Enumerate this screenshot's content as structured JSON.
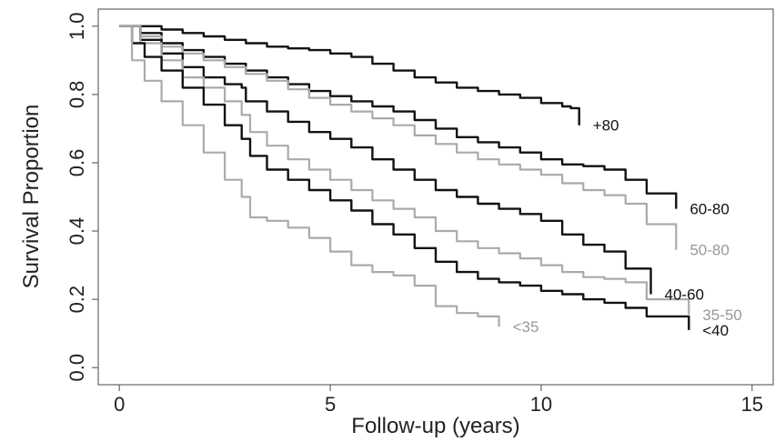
{
  "chart_data": {
    "type": "line",
    "title": "",
    "xlabel": "Follow-up (years)",
    "ylabel": "Survival Proportion",
    "xlim": [
      -0.5,
      15.5
    ],
    "ylim": [
      -0.05,
      1.05
    ],
    "xticks": [
      0,
      5,
      10,
      15
    ],
    "yticks": [
      0.0,
      0.2,
      0.4,
      0.6,
      0.8,
      1.0
    ],
    "xtick_labels": [
      "0",
      "5",
      "10",
      "15"
    ],
    "ytick_labels": [
      "0.0",
      "0.2",
      "0.4",
      "0.6",
      "0.8",
      "1.0"
    ],
    "grid": false,
    "series": [
      {
        "name": "+80",
        "color": "#111111",
        "x": [
          0,
          0.5,
          1,
          1.5,
          2,
          2.5,
          3,
          3.5,
          4,
          4.5,
          5,
          5.5,
          6,
          6.5,
          7,
          7.5,
          8,
          8.5,
          9,
          9.5,
          10,
          10.5,
          10.7,
          10.9
        ],
        "y": [
          1.0,
          1.0,
          0.99,
          0.98,
          0.97,
          0.96,
          0.95,
          0.94,
          0.935,
          0.93,
          0.92,
          0.91,
          0.89,
          0.87,
          0.85,
          0.835,
          0.82,
          0.81,
          0.8,
          0.79,
          0.775,
          0.765,
          0.76,
          0.71
        ]
      },
      {
        "name": "60-80",
        "color": "#111111",
        "x": [
          0,
          0.5,
          1,
          1.5,
          2,
          2.5,
          3,
          3.5,
          4,
          4.5,
          5,
          5.5,
          6,
          6.5,
          7,
          7.5,
          8,
          8.5,
          9,
          9.5,
          10,
          10.5,
          11,
          11.5,
          12,
          12.5,
          13.2
        ],
        "y": [
          1.0,
          0.98,
          0.95,
          0.93,
          0.91,
          0.89,
          0.87,
          0.85,
          0.83,
          0.81,
          0.795,
          0.78,
          0.765,
          0.75,
          0.725,
          0.7,
          0.675,
          0.66,
          0.645,
          0.63,
          0.61,
          0.595,
          0.59,
          0.58,
          0.55,
          0.51,
          0.465
        ]
      },
      {
        "name": "50-80",
        "color": "#aaaaaa",
        "x": [
          0,
          0.5,
          1,
          1.5,
          2,
          2.5,
          3,
          3.5,
          4,
          4.5,
          5,
          5.5,
          6,
          6.5,
          7,
          7.5,
          8,
          8.5,
          9,
          9.5,
          10,
          10.5,
          11,
          11.5,
          12,
          12.5,
          13.2
        ],
        "y": [
          1.0,
          0.97,
          0.94,
          0.92,
          0.9,
          0.88,
          0.86,
          0.84,
          0.815,
          0.79,
          0.77,
          0.75,
          0.73,
          0.71,
          0.68,
          0.655,
          0.63,
          0.61,
          0.595,
          0.58,
          0.565,
          0.54,
          0.52,
          0.505,
          0.48,
          0.42,
          0.345
        ]
      },
      {
        "name": "40-60",
        "color": "#111111",
        "x": [
          0,
          0.5,
          1,
          1.5,
          2,
          2.5,
          2.9,
          3,
          3.5,
          4,
          4.5,
          5,
          5.5,
          6,
          6.5,
          7,
          7.5,
          8,
          8.5,
          9,
          9.5,
          10,
          10.5,
          11,
          11.5,
          12,
          12.6
        ],
        "y": [
          1.0,
          0.96,
          0.92,
          0.88,
          0.85,
          0.83,
          0.82,
          0.78,
          0.75,
          0.72,
          0.69,
          0.67,
          0.645,
          0.61,
          0.58,
          0.55,
          0.52,
          0.5,
          0.48,
          0.465,
          0.45,
          0.43,
          0.39,
          0.36,
          0.34,
          0.29,
          0.215
        ]
      },
      {
        "name": "35-50",
        "color": "#aaaaaa",
        "x": [
          0,
          0.5,
          1,
          1.5,
          2,
          2.5,
          2.9,
          3.1,
          3.5,
          4,
          4.5,
          5,
          5.5,
          6,
          6.5,
          7,
          7.5,
          8,
          8.5,
          9,
          9.5,
          10,
          10.5,
          11,
          11.5,
          12,
          12.5,
          13.5
        ],
        "y": [
          1.0,
          0.95,
          0.9,
          0.85,
          0.82,
          0.78,
          0.74,
          0.69,
          0.65,
          0.61,
          0.58,
          0.55,
          0.52,
          0.49,
          0.465,
          0.44,
          0.4,
          0.37,
          0.35,
          0.335,
          0.32,
          0.3,
          0.28,
          0.265,
          0.26,
          0.25,
          0.2,
          0.155
        ]
      },
      {
        "name": "<40",
        "color": "#111111",
        "x": [
          0,
          0.3,
          0.6,
          1,
          1.5,
          2,
          2.5,
          2.9,
          3.1,
          3.5,
          4,
          4.5,
          5,
          5.5,
          6,
          6.5,
          7,
          7.5,
          8,
          8.5,
          9,
          9.5,
          10,
          10.5,
          11,
          11.5,
          12,
          12.5,
          13.5
        ],
        "y": [
          1.0,
          0.95,
          0.91,
          0.87,
          0.82,
          0.77,
          0.71,
          0.67,
          0.62,
          0.58,
          0.55,
          0.52,
          0.49,
          0.46,
          0.42,
          0.39,
          0.35,
          0.31,
          0.28,
          0.26,
          0.25,
          0.24,
          0.225,
          0.215,
          0.2,
          0.19,
          0.175,
          0.15,
          0.11
        ]
      },
      {
        "name": "<35",
        "color": "#aaaaaa",
        "x": [
          0,
          0.3,
          0.6,
          1,
          1.5,
          2,
          2.5,
          2.9,
          3.1,
          3.5,
          4,
          4.5,
          5,
          5.5,
          6,
          6.5,
          7,
          7.5,
          8,
          8.5,
          9
        ],
        "y": [
          1.0,
          0.9,
          0.84,
          0.78,
          0.71,
          0.63,
          0.55,
          0.5,
          0.44,
          0.43,
          0.41,
          0.38,
          0.34,
          0.3,
          0.28,
          0.27,
          0.24,
          0.18,
          0.16,
          0.15,
          0.12
        ]
      }
    ]
  }
}
